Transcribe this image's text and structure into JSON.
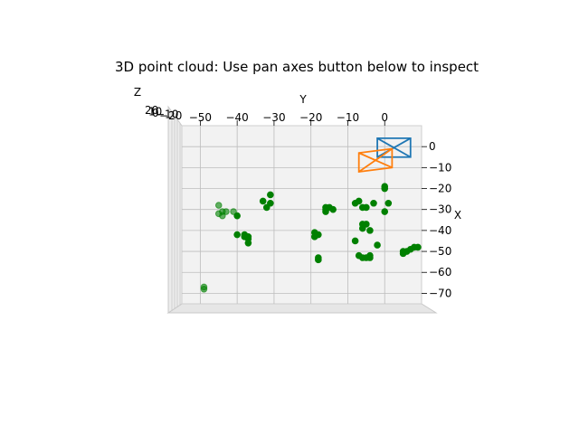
{
  "chart_data": {
    "type": "scatter",
    "projection": "3d",
    "title": "3D point cloud: Use pan axes button below to inspect",
    "xlabel": "X",
    "ylabel": "Y",
    "zlabel": "Z",
    "xlim": [
      -75,
      10
    ],
    "ylim": [
      -55,
      10
    ],
    "x_ticks": [
      0,
      -10,
      -20,
      -30,
      -40,
      -50,
      -60,
      -70
    ],
    "y_ticks": [
      -50,
      -40,
      -30,
      -20,
      -10,
      0
    ],
    "z_tick_labels_overlapping": [
      "20",
      "10",
      "0",
      "-10",
      "-20"
    ],
    "grid": true,
    "point_color": "#008000",
    "points": [
      {
        "y": -49,
        "x": -67
      },
      {
        "y": -49,
        "x": -68
      },
      {
        "y": -43,
        "x": -31
      },
      {
        "y": -40,
        "x": -33
      },
      {
        "y": -44,
        "x": -33
      },
      {
        "y": -45,
        "x": -32
      },
      {
        "y": -41,
        "x": -31
      },
      {
        "y": -44,
        "x": -31
      },
      {
        "y": -45,
        "x": -28
      },
      {
        "y": -37,
        "x": -43
      },
      {
        "y": -37,
        "x": -44
      },
      {
        "y": -38,
        "x": -42
      },
      {
        "y": -38,
        "x": -43
      },
      {
        "y": -40,
        "x": -42
      },
      {
        "y": -31,
        "x": -23
      },
      {
        "y": -31,
        "x": -27
      },
      {
        "y": -33,
        "x": -26
      },
      {
        "y": -32,
        "x": -29
      },
      {
        "y": -37,
        "x": -46
      },
      {
        "y": -16,
        "x": -29
      },
      {
        "y": -15,
        "x": -29
      },
      {
        "y": -16,
        "x": -31
      },
      {
        "y": -14,
        "x": -30
      },
      {
        "y": -16,
        "x": -30
      },
      {
        "y": -19,
        "x": -41
      },
      {
        "y": -19,
        "x": -43
      },
      {
        "y": -18,
        "x": -42
      },
      {
        "y": -18,
        "x": -54
      },
      {
        "y": -18,
        "x": -53
      },
      {
        "y": -8,
        "x": -27
      },
      {
        "y": -7,
        "x": -26
      },
      {
        "y": -5,
        "x": -29
      },
      {
        "y": -3,
        "x": -27
      },
      {
        "y": -6,
        "x": -29
      },
      {
        "y": -6,
        "x": -39
      },
      {
        "y": -5,
        "x": -37
      },
      {
        "y": -6,
        "x": -37
      },
      {
        "y": -4,
        "x": -40
      },
      {
        "y": -8,
        "x": -45
      },
      {
        "y": -7,
        "x": -52
      },
      {
        "y": -6,
        "x": -53
      },
      {
        "y": -5,
        "x": -53
      },
      {
        "y": -4,
        "x": -53
      },
      {
        "y": -4,
        "x": -52
      },
      {
        "y": 0,
        "x": -20
      },
      {
        "y": 0,
        "x": -19
      },
      {
        "y": 1,
        "x": -27
      },
      {
        "y": 0,
        "x": -31
      },
      {
        "y": 5,
        "x": -50
      },
      {
        "y": 5,
        "x": -51
      },
      {
        "y": 6,
        "x": -50
      },
      {
        "y": 7,
        "x": -49
      },
      {
        "y": 8,
        "x": -48
      },
      {
        "y": 9,
        "x": -48
      },
      {
        "y": -2,
        "x": -47
      }
    ],
    "camera_frames": [
      {
        "color": "#1f77b4",
        "corners": [
          {
            "y": -2,
            "x": -5
          },
          {
            "y": 7,
            "x": -5
          },
          {
            "y": 7,
            "x": 4
          },
          {
            "y": -2,
            "x": 4
          }
        ]
      },
      {
        "color": "#ff7f0e",
        "corners": [
          {
            "y": -7,
            "x": -12
          },
          {
            "y": 2,
            "x": -10
          },
          {
            "y": 2,
            "x": -1
          },
          {
            "y": -7,
            "x": -3
          }
        ]
      }
    ]
  }
}
